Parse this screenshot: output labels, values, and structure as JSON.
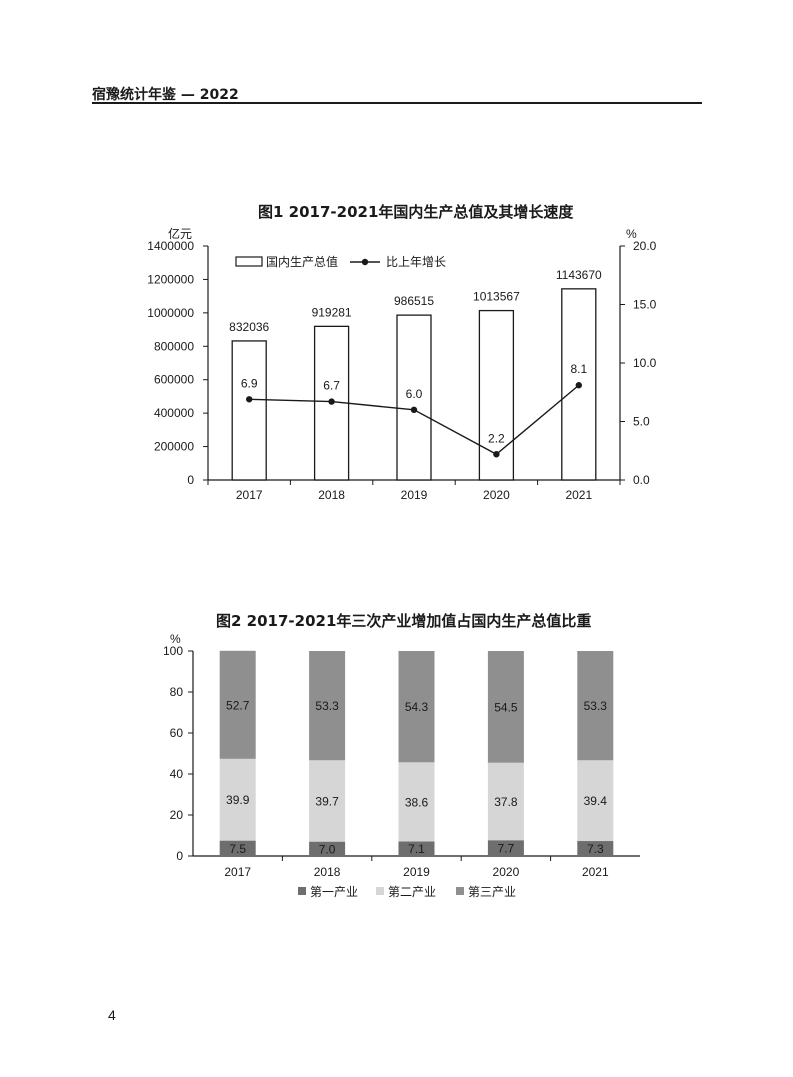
{
  "header": {
    "title": "宿豫统计年鉴 — 2022"
  },
  "page_number": "4",
  "colors": {
    "primary": "#2d2d2d",
    "secondary": "#d6d6d6",
    "tertiary": "#6e6e6e",
    "tertiary_stack": "#8f8f8f",
    "line": "#1a1a1a"
  },
  "chart_data": [
    {
      "id": "fig1",
      "type": "bar",
      "title": "图1   2017-2021年国内生产总值及其增长速度",
      "categories": [
        "2017",
        "2018",
        "2019",
        "2020",
        "2021"
      ],
      "ylabel": "亿元",
      "ylabel_right": "%",
      "ylim": [
        0,
        1400000
      ],
      "yticks": [
        "1400000",
        "1200000",
        "1000000",
        "800000",
        "600000",
        "400000",
        "200000",
        "0"
      ],
      "ylim_right": [
        0,
        20
      ],
      "yticks_right": [
        "20.0",
        "15.0",
        "10.0",
        "5.0",
        "0.0"
      ],
      "legend_position": "top-left",
      "grid": false,
      "series": [
        {
          "name": "国内生产总值",
          "kind": "bar",
          "axis": "left",
          "values": [
            832036,
            919281,
            986515,
            1013567,
            1143670
          ],
          "labels": [
            "832036",
            "919281",
            "986515",
            "1013567",
            "1143670"
          ]
        },
        {
          "name": "比上年增长",
          "kind": "line",
          "axis": "right",
          "values": [
            6.9,
            6.7,
            6.0,
            2.2,
            8.1
          ],
          "labels": [
            "6.9",
            "6.7",
            "6.0",
            "2.2",
            "8.1"
          ]
        }
      ]
    },
    {
      "id": "fig2",
      "type": "bar",
      "stacked": true,
      "title": "图2   2017-2021年三次产业增加值占国内生产总值比重",
      "categories": [
        "2017",
        "2018",
        "2019",
        "2020",
        "2021"
      ],
      "ylabel": "%",
      "ylim": [
        0,
        100
      ],
      "yticks": [
        "100",
        "80",
        "60",
        "40",
        "20",
        "0"
      ],
      "legend_position": "bottom-center",
      "grid": false,
      "series": [
        {
          "name": "第一产业",
          "values": [
            7.5,
            7.0,
            7.1,
            7.7,
            7.3
          ],
          "labels": [
            "7.5",
            "7.0",
            "7.1",
            "7.7",
            "7.3"
          ]
        },
        {
          "name": "第二产业",
          "values": [
            39.9,
            39.7,
            38.6,
            37.8,
            39.4
          ],
          "labels": [
            "39.9",
            "39.7",
            "38.6",
            "37.8",
            "39.4"
          ]
        },
        {
          "name": "第三产业",
          "values": [
            52.7,
            53.3,
            54.3,
            54.5,
            53.3
          ],
          "labels": [
            "52.7",
            "53.3",
            "54.3",
            "54.5",
            "53.3"
          ]
        }
      ]
    }
  ]
}
